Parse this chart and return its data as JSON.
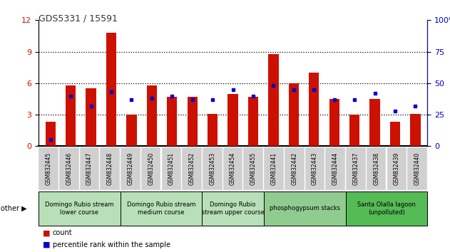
{
  "title": "GDS5331 / 15591",
  "samples": [
    "GSM832445",
    "GSM832446",
    "GSM832447",
    "GSM832448",
    "GSM832449",
    "GSM832450",
    "GSM832451",
    "GSM832452",
    "GSM832453",
    "GSM832454",
    "GSM832455",
    "GSM832441",
    "GSM832442",
    "GSM832443",
    "GSM832444",
    "GSM832437",
    "GSM832438",
    "GSM832439",
    "GSM832440"
  ],
  "count": [
    2.3,
    5.8,
    5.5,
    10.8,
    3.0,
    5.8,
    4.7,
    4.7,
    3.1,
    5.0,
    4.7,
    8.8,
    6.0,
    7.0,
    4.5,
    3.0,
    4.5,
    2.3,
    3.1
  ],
  "percentile": [
    5,
    40,
    32,
    43,
    37,
    38,
    40,
    37,
    37,
    45,
    40,
    48,
    45,
    45,
    37,
    37,
    42,
    28,
    32
  ],
  "groups": [
    {
      "label": "Domingo Rubio stream\nlower course",
      "start": 0,
      "end": 3,
      "color": "#b8e0b8"
    },
    {
      "label": "Domingo Rubio stream\nmedium course",
      "start": 4,
      "end": 7,
      "color": "#b8e0b8"
    },
    {
      "label": "Domingo Rubio\nstream upper course",
      "start": 8,
      "end": 10,
      "color": "#b8e0b8"
    },
    {
      "label": "phosphogypsum stacks",
      "start": 11,
      "end": 14,
      "color": "#90cc90"
    },
    {
      "label": "Santa Olalla lagoon\n(unpolluted)",
      "start": 15,
      "end": 18,
      "color": "#55bb55"
    }
  ],
  "ylim_left": [
    0,
    12
  ],
  "ylim_right": [
    0,
    100
  ],
  "yticks_left": [
    0,
    3,
    6,
    9,
    12
  ],
  "yticks_right": [
    0,
    25,
    50,
    75,
    100
  ],
  "bar_color": "#cc1100",
  "dot_color": "#0000cc",
  "bg_color": "#ffffff",
  "xticklabel_bg": "#d0d0d0",
  "left_axis_color": "#cc1100",
  "right_axis_color": "#0000cc"
}
